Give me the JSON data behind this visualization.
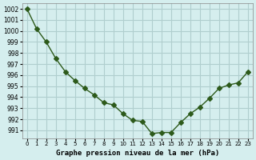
{
  "x": [
    0,
    1,
    2,
    3,
    4,
    5,
    6,
    7,
    8,
    9,
    10,
    11,
    12,
    13,
    14,
    15,
    16,
    17,
    18,
    19,
    20,
    21,
    22,
    23
  ],
  "y": [
    1002.0,
    1000.2,
    999.0,
    997.5,
    996.3,
    995.5,
    994.8,
    994.2,
    993.5,
    993.3,
    992.5,
    991.9,
    991.8,
    990.7,
    990.8,
    990.8,
    991.7,
    992.5,
    993.1,
    993.9,
    994.8,
    995.1,
    995.3,
    996.3
  ],
  "line_color": "#2d5a1b",
  "marker": "D",
  "marker_size": 3,
  "bg_color": "#d5eeee",
  "grid_color": "#b0cece",
  "xlabel": "Graphe pression niveau de la mer (hPa)",
  "yticks": [
    991,
    992,
    993,
    994,
    995,
    996,
    997,
    998,
    999,
    1000,
    1001,
    1002
  ],
  "ylim": [
    990.3,
    1002.5
  ],
  "xlim": [
    -0.5,
    23.5
  ]
}
